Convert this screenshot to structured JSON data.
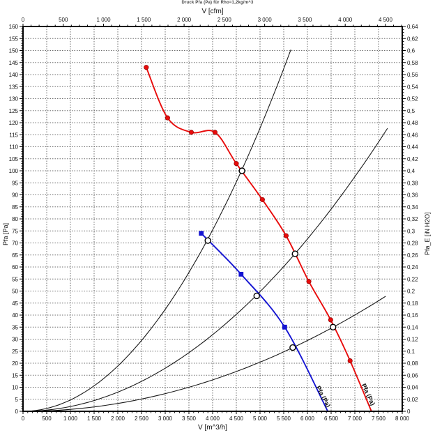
{
  "chart_data": {
    "type": "line",
    "title": "Druck Pfa (Pa) für Rho=1,2kg/m^3",
    "grid": {
      "x_step": 500,
      "y_step": 5,
      "style": "dashed"
    },
    "axes": {
      "bottom": {
        "label": "V [m^3/h]",
        "min": 0,
        "max": 8000,
        "major": 500,
        "minor": 100,
        "format": "int"
      },
      "top": {
        "label": "V [cfm]",
        "min": 0,
        "max": 4708,
        "major": 500,
        "minor": 100,
        "format": "int"
      },
      "left": {
        "label": "Pfa [Pa]",
        "min": 0,
        "max": 160,
        "major": 5,
        "minor": 1,
        "format": "int"
      },
      "right": {
        "label": "Pfa_E [iN H2O]",
        "min": 0,
        "max": 0.64,
        "major": 0.02,
        "minor": 0.005,
        "format": "dec"
      }
    },
    "series": [
      {
        "name": "fan-curve-high-speed",
        "color": "#e80c0c",
        "marker": "circle",
        "label": "Pfa (Pa)",
        "label_pos": [
          7140,
          11
        ],
        "label_angle": 65,
        "points": [
          [
            2600,
            143
          ],
          [
            3050,
            122
          ],
          [
            3550,
            116
          ],
          [
            4050,
            116
          ],
          [
            4500,
            103
          ],
          [
            5050,
            88
          ],
          [
            5550,
            73
          ],
          [
            6030,
            54
          ],
          [
            6490,
            38
          ],
          [
            6900,
            21
          ]
        ],
        "end": [
          7350,
          0
        ]
      },
      {
        "name": "fan-curve-low-speed",
        "color": "#1414d2",
        "marker": "square",
        "label": "Pfa (Pa)",
        "label_pos": [
          6180,
          10
        ],
        "label_angle": 62,
        "points": [
          [
            3760,
            74
          ],
          [
            4600,
            57
          ],
          [
            5520,
            35
          ]
        ],
        "end": [
          6430,
          0
        ]
      }
    ],
    "system_curves": [
      {
        "name": "system-curve-1",
        "k": 4.71e-06,
        "v_max": 5650
      },
      {
        "name": "system-curve-2",
        "k": 1.99e-06,
        "v_max": 7690
      },
      {
        "name": "system-curve-3",
        "k": 8.17e-07,
        "v_max": 7650
      }
    ],
    "operating_points": [
      [
        4620,
        100
      ],
      [
        5740,
        65.5
      ],
      [
        6540,
        35
      ],
      [
        3900,
        71
      ],
      [
        4930,
        48
      ],
      [
        5690,
        26.5
      ]
    ]
  }
}
